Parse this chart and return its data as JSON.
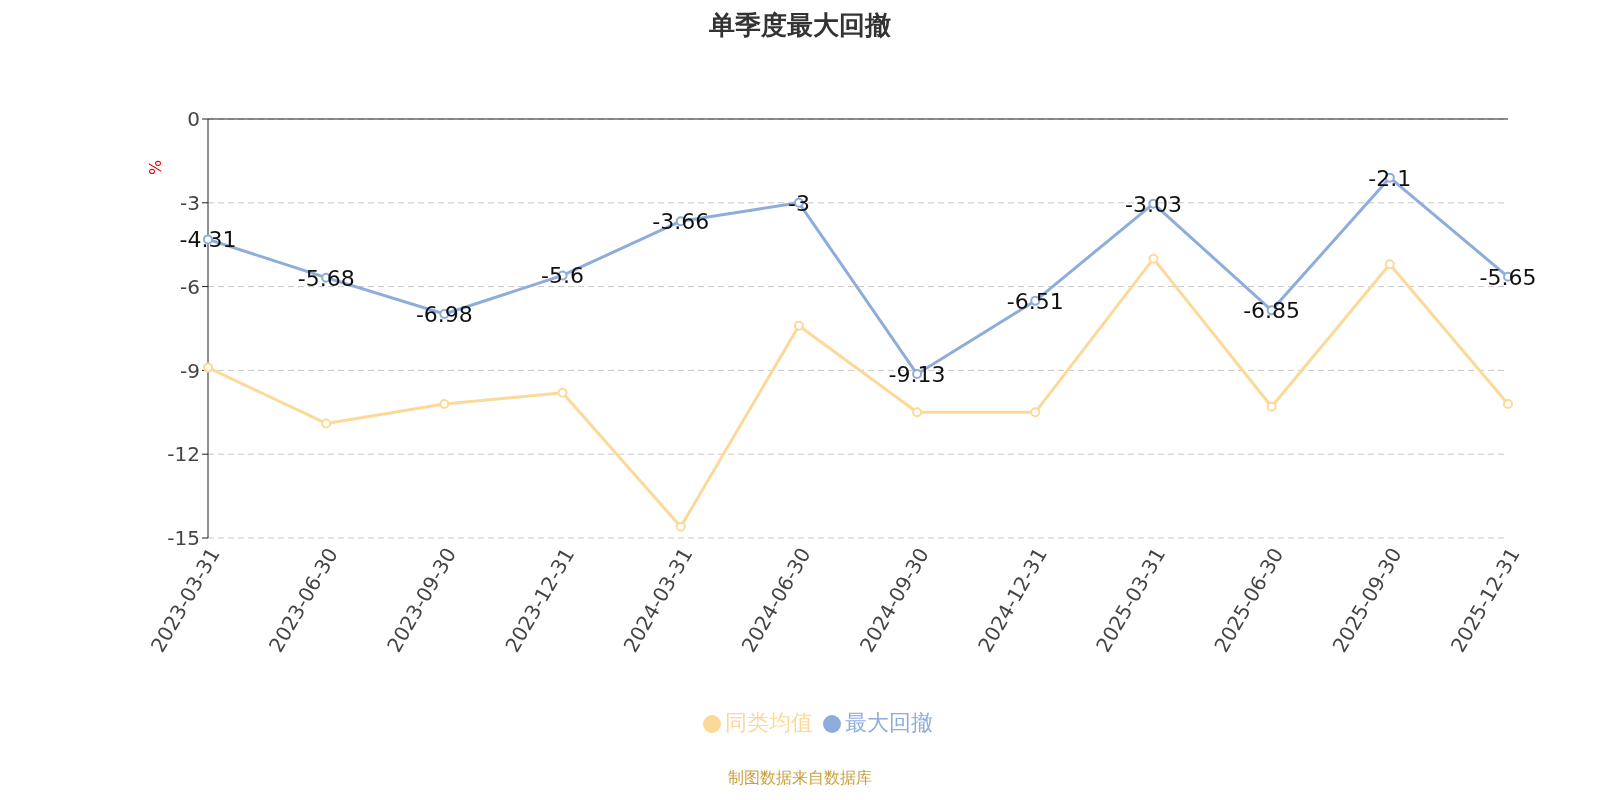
{
  "chart_data": {
    "type": "line",
    "title": "单季度最大回撤",
    "ylabel": "%",
    "categories": [
      "2023-03-31",
      "2023-06-30",
      "2023-09-30",
      "2023-12-31",
      "2024-03-31",
      "2024-06-30",
      "2024-09-30",
      "2024-12-31",
      "2025-03-31",
      "2025-06-30",
      "2025-09-30",
      "2025-12-31"
    ],
    "series": [
      {
        "name": "最大回撤",
        "color": "#8eaddb",
        "values": [
          -4.31,
          -5.68,
          -6.98,
          -5.6,
          -3.66,
          -3,
          -9.13,
          -6.51,
          -3.03,
          -6.85,
          -2.1,
          -5.65
        ],
        "value_labels": [
          "-4.31",
          "-5.68",
          "-6.98",
          "-5.6",
          "-3.66",
          "-3",
          "-9.13",
          "-6.51",
          "-3.03",
          "-6.85",
          "-2.1",
          "-5.65"
        ]
      },
      {
        "name": "同类均值",
        "color": "#fdd999",
        "values": [
          -8.9,
          -10.9,
          -10.2,
          -9.8,
          -14.6,
          -7.4,
          -10.5,
          -10.5,
          -5.0,
          -10.3,
          -5.2,
          -10.2
        ]
      }
    ],
    "ylim": [
      -15,
      0
    ],
    "yticks": [
      0,
      -3,
      -6,
      -9,
      -12,
      -15
    ],
    "grid": "y",
    "legend": "bottom",
    "marker": "circle",
    "line_style": "solid",
    "annotations": [
      "制图数据来自数据库"
    ]
  }
}
